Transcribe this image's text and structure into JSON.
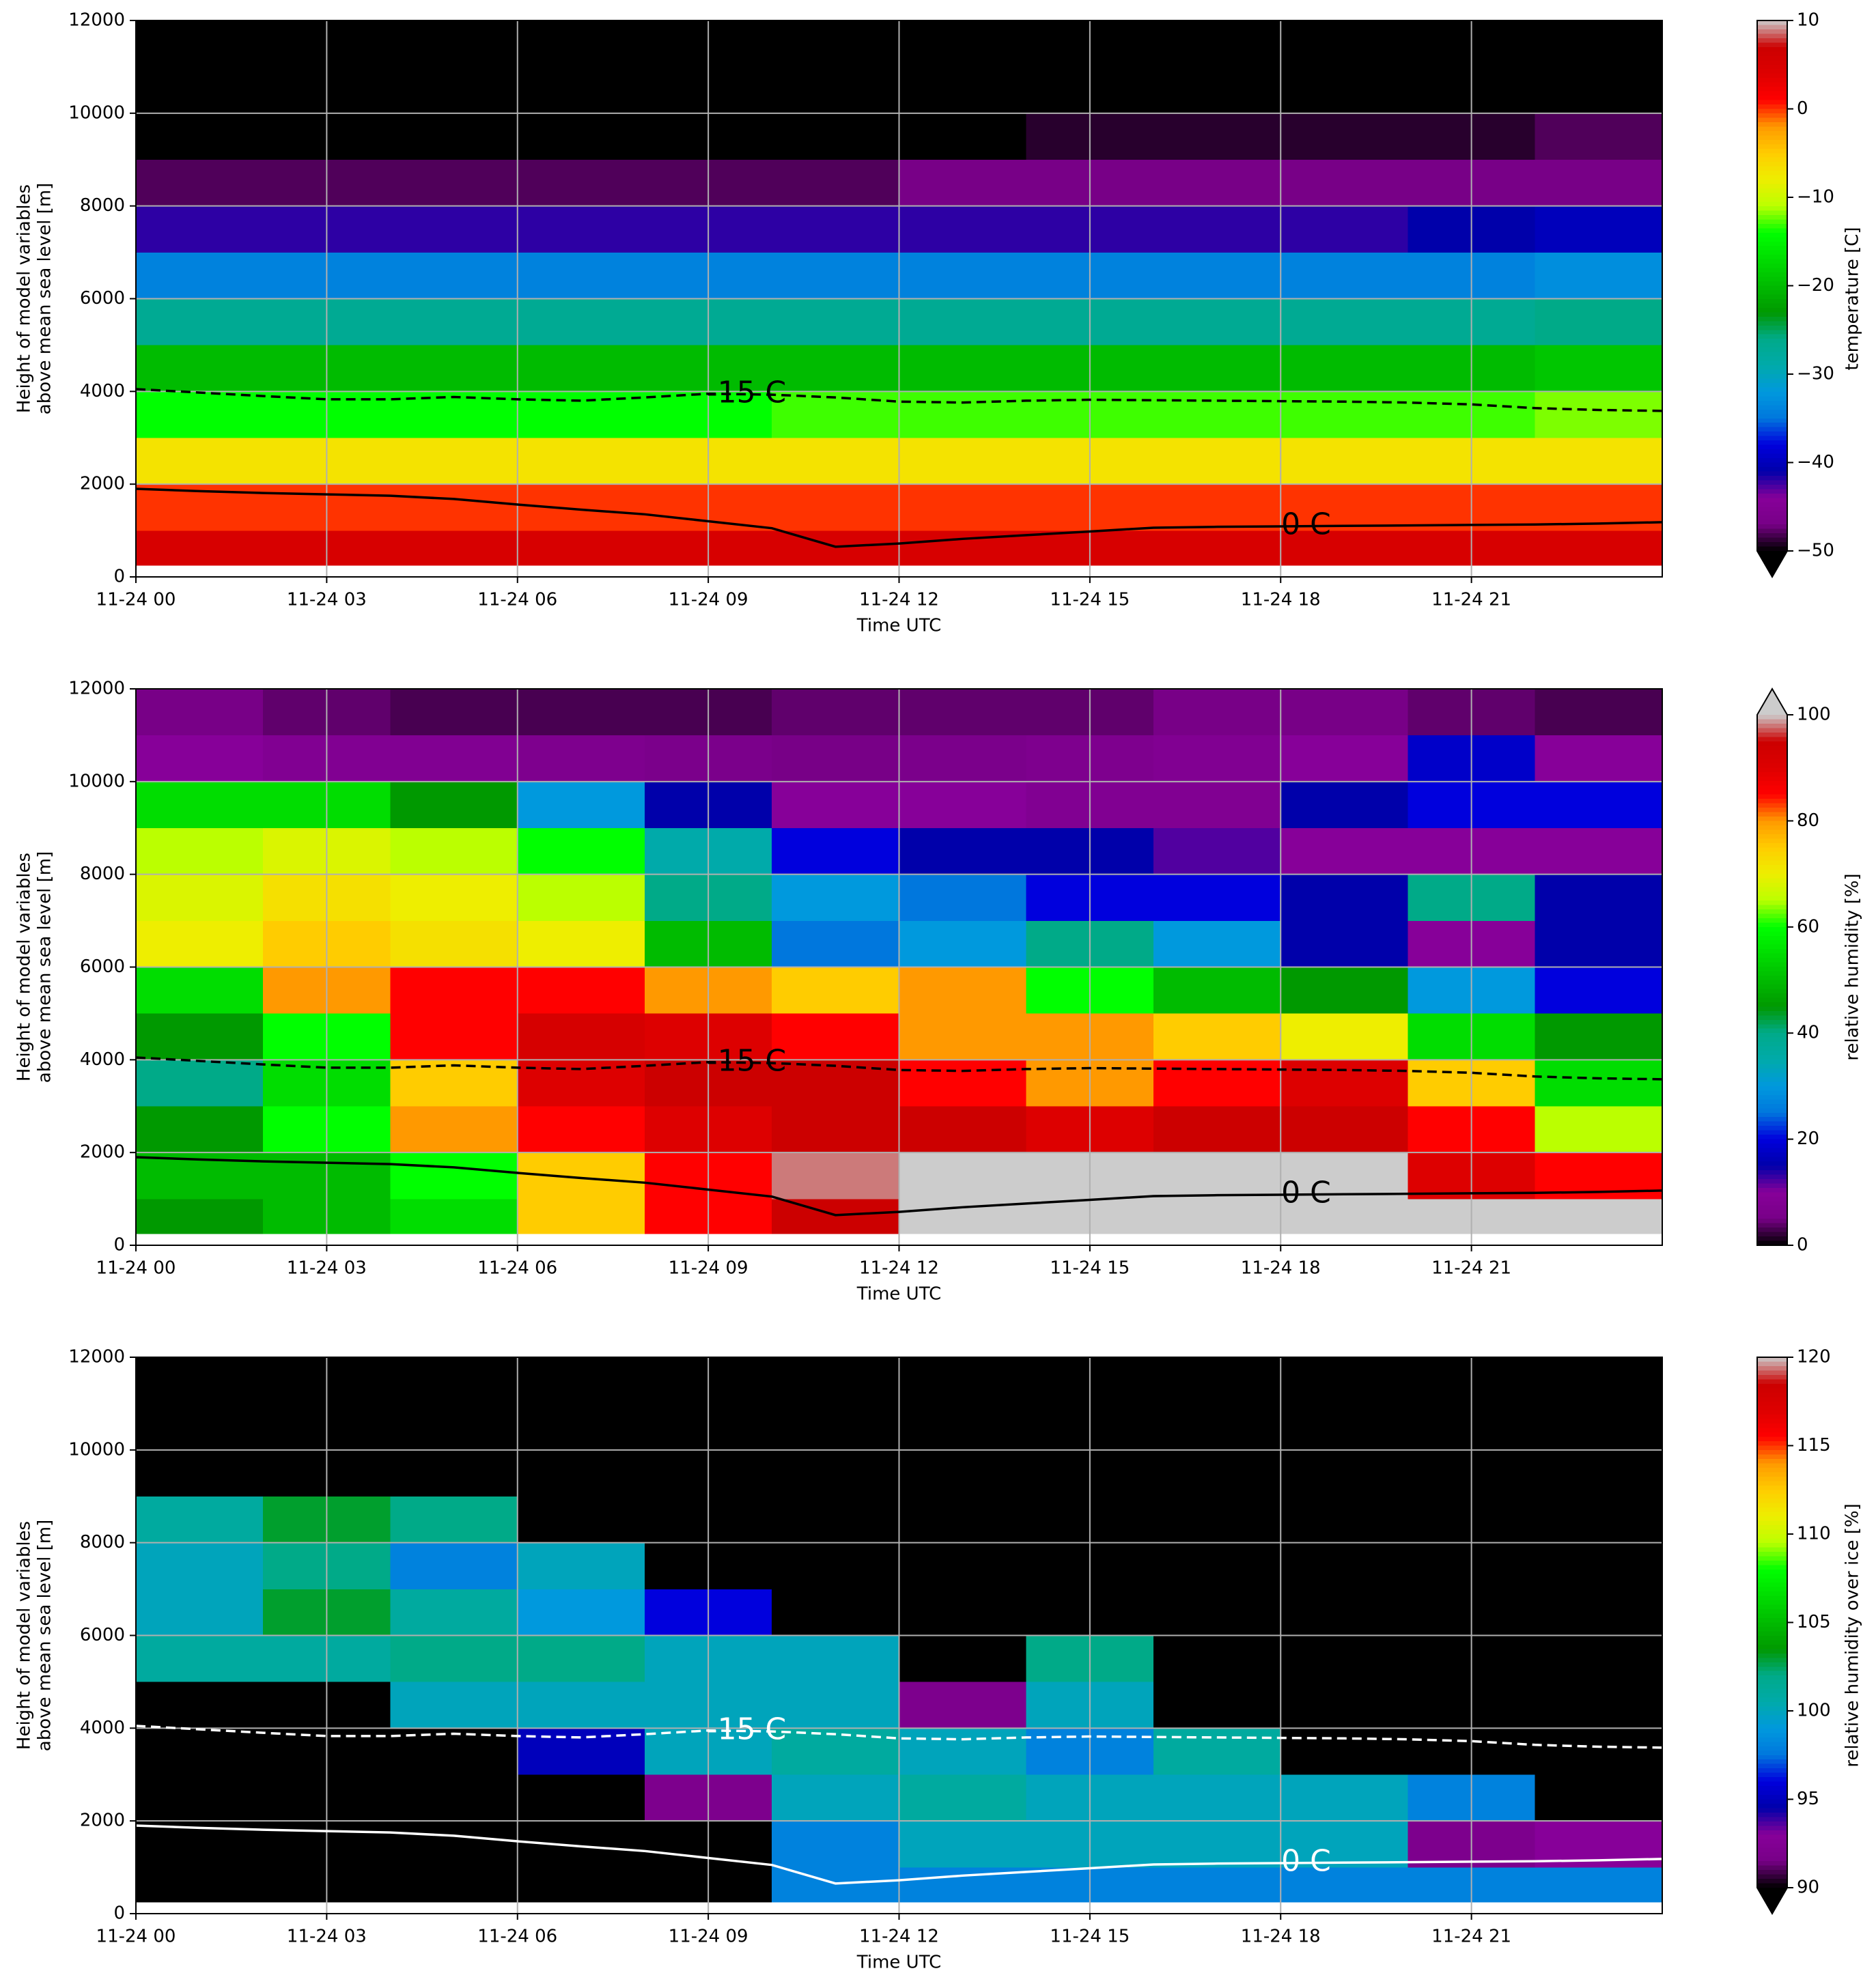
{
  "chart_data": [
    {
      "type": "heatmap",
      "xlabel": "Time UTC",
      "ylabel": [
        "Height of model variables",
        "above mean sea level [m]"
      ],
      "xlim": [
        0,
        24
      ],
      "ylim": [
        0,
        12000
      ],
      "xticks": [
        {
          "value": 0,
          "label": "11-24 00"
        },
        {
          "value": 3,
          "label": "11-24 03"
        },
        {
          "value": 6,
          "label": "11-24 06"
        },
        {
          "value": 9,
          "label": "11-24 09"
        },
        {
          "value": 12,
          "label": "11-24 12"
        },
        {
          "value": 15,
          "label": "11-24 15"
        },
        {
          "value": 18,
          "label": "11-24 18"
        },
        {
          "value": 21,
          "label": "11-24 21"
        }
      ],
      "yticks": [
        0,
        2000,
        4000,
        6000,
        8000,
        10000,
        12000
      ],
      "grid": true,
      "x_edges": [
        0,
        2,
        4,
        6,
        8,
        10,
        12,
        14,
        16,
        18,
        20,
        22,
        24
      ],
      "y_edges": [
        250,
        1000,
        2000,
        3000,
        4000,
        5000,
        6000,
        7000,
        8000,
        9000,
        10000,
        11000,
        12000
      ],
      "z": [
        [
          5,
          5,
          5,
          5,
          5,
          5,
          5,
          5,
          5,
          5,
          5,
          5
        ],
        [
          0,
          0,
          0,
          0,
          0,
          0,
          0,
          0,
          0,
          0,
          0,
          0
        ],
        [
          -7,
          -7,
          -7,
          -7,
          -7,
          -7,
          -7,
          -7,
          -7,
          -7,
          -7,
          -7
        ],
        [
          -14,
          -14,
          -14,
          -14,
          -14,
          -13,
          -13,
          -13,
          -13,
          -13,
          -13,
          -12
        ],
        [
          -20,
          -20,
          -20,
          -20,
          -20,
          -20,
          -20,
          -20,
          -20,
          -20,
          -20,
          -19
        ],
        [
          -27,
          -27,
          -27,
          -27,
          -27,
          -27,
          -27,
          -27,
          -27,
          -27,
          -27,
          -26
        ],
        [
          -34,
          -34,
          -34,
          -34,
          -34,
          -34,
          -34,
          -34,
          -34,
          -34,
          -34,
          -33
        ],
        [
          -42,
          -42,
          -42,
          -42,
          -42,
          -42,
          -42,
          -42,
          -42,
          -42,
          -41,
          -40
        ],
        [
          -48,
          -48,
          -48,
          -48,
          -48,
          -48,
          -47,
          -47,
          -47,
          -47,
          -47,
          -47
        ],
        [
          -55,
          -55,
          -55,
          -55,
          -54,
          -52,
          -50,
          -49,
          -49,
          -49,
          -49,
          -48
        ],
        [
          -56,
          -56,
          -56,
          -56,
          -56,
          -56,
          -55,
          -55,
          -55,
          -55,
          -55,
          -55
        ],
        [
          -57,
          -57,
          -57,
          -57,
          -57,
          -57,
          -57,
          -57,
          -57,
          -57,
          -57,
          -57
        ]
      ],
      "colorbar": {
        "label": "temperature [C]",
        "lim": [
          -50,
          10
        ],
        "extend": "min",
        "ticks": [
          {
            "value": -50,
            "label": "−50"
          },
          {
            "value": -40,
            "label": "−40"
          },
          {
            "value": -30,
            "label": "−30"
          },
          {
            "value": -20,
            "label": "−20"
          },
          {
            "value": -10,
            "label": "−10"
          },
          0,
          10
        ]
      },
      "colormap": [
        "#000000",
        "#780087",
        "#870099",
        "#0000aa",
        "#0000dd",
        "#0077dd",
        "#0099dd",
        "#00aaaa",
        "#00aa88",
        "#009900",
        "#00bb00",
        "#00dd00",
        "#00ff00",
        "#bbff00",
        "#eeee00",
        "#ffcc00",
        "#ff9900",
        "#ff0000",
        "#dd0000",
        "#cc0000",
        "#cccccc"
      ],
      "contours": [
        {
          "name": "-15 C",
          "color": "#000000",
          "dashed": true,
          "x": [
            0,
            2,
            3,
            4,
            5,
            6,
            7,
            8,
            9,
            10,
            11,
            12,
            13,
            14,
            15,
            16,
            17,
            18,
            19,
            20,
            21,
            22,
            23,
            24
          ],
          "y": [
            4050,
            3900,
            3830,
            3830,
            3880,
            3830,
            3800,
            3870,
            3950,
            3930,
            3870,
            3780,
            3760,
            3800,
            3820,
            3810,
            3800,
            3790,
            3780,
            3760,
            3720,
            3640,
            3600,
            3580
          ]
        },
        {
          "name": "0 C",
          "color": "#000000",
          "dashed": false,
          "x": [
            0,
            1,
            2,
            3,
            4,
            5,
            6,
            7,
            8,
            9,
            10,
            11,
            12,
            13,
            14,
            15,
            16,
            17,
            18,
            19,
            20,
            21,
            22,
            23,
            24
          ],
          "y": [
            1900,
            1850,
            1810,
            1780,
            1750,
            1680,
            1560,
            1450,
            1350,
            1200,
            1050,
            650,
            720,
            820,
            900,
            980,
            1060,
            1080,
            1090,
            1100,
            1110,
            1120,
            1130,
            1150,
            1180
          ]
        }
      ]
    },
    {
      "type": "heatmap",
      "xlabel": "Time UTC",
      "ylabel": [
        "Height of model variables",
        "above mean sea level [m]"
      ],
      "xlim": [
        0,
        24
      ],
      "ylim": [
        0,
        12000
      ],
      "xticks": [
        {
          "value": 0,
          "label": "11-24 00"
        },
        {
          "value": 3,
          "label": "11-24 03"
        },
        {
          "value": 6,
          "label": "11-24 06"
        },
        {
          "value": 9,
          "label": "11-24 09"
        },
        {
          "value": 12,
          "label": "11-24 12"
        },
        {
          "value": 15,
          "label": "11-24 15"
        },
        {
          "value": 18,
          "label": "11-24 18"
        },
        {
          "value": 21,
          "label": "11-24 21"
        }
      ],
      "yticks": [
        0,
        2000,
        4000,
        6000,
        8000,
        10000,
        12000
      ],
      "grid": true,
      "x_edges": [
        0,
        2,
        4,
        6,
        8,
        10,
        12,
        14,
        16,
        18,
        20,
        22,
        24
      ],
      "y_edges": [
        250,
        1000,
        2000,
        3000,
        4000,
        5000,
        6000,
        7000,
        8000,
        9000,
        10000,
        11000,
        12000
      ],
      "z": [
        [
          45,
          50,
          55,
          75,
          85,
          95,
          100,
          100,
          100,
          100,
          100,
          100
        ],
        [
          50,
          50,
          60,
          75,
          85,
          98,
          100,
          100,
          100,
          100,
          90,
          85
        ],
        [
          45,
          60,
          80,
          85,
          90,
          95,
          95,
          90,
          95,
          95,
          85,
          65
        ],
        [
          40,
          55,
          75,
          90,
          95,
          95,
          85,
          80,
          85,
          90,
          75,
          55
        ],
        [
          45,
          60,
          85,
          92,
          90,
          85,
          80,
          80,
          75,
          70,
          55,
          45
        ],
        [
          55,
          80,
          85,
          85,
          80,
          75,
          80,
          60,
          50,
          45,
          30,
          20
        ],
        [
          70,
          75,
          72,
          70,
          50,
          25,
          30,
          40,
          30,
          15,
          10,
          15
        ],
        [
          68,
          72,
          70,
          65,
          40,
          30,
          25,
          20,
          20,
          15,
          40,
          15
        ],
        [
          65,
          68,
          65,
          60,
          35,
          20,
          15,
          15,
          12,
          10,
          10,
          10
        ],
        [
          55,
          55,
          45,
          30,
          15,
          10,
          10,
          8,
          8,
          15,
          20,
          20
        ],
        [
          10,
          8,
          8,
          7,
          6,
          5,
          6,
          7,
          8,
          10,
          18,
          10
        ],
        [
          5,
          4,
          3,
          3,
          3,
          4,
          4,
          4,
          5,
          5,
          4,
          3
        ]
      ],
      "colorbar": {
        "label": "relative humidity [%]",
        "lim": [
          0,
          100
        ],
        "extend": "max",
        "ticks": [
          0,
          20,
          40,
          60,
          80,
          100
        ]
      },
      "colormap": [
        "#000000",
        "#780087",
        "#870099",
        "#0000aa",
        "#0000dd",
        "#0077dd",
        "#0099dd",
        "#00aaaa",
        "#00aa88",
        "#009900",
        "#00bb00",
        "#00dd00",
        "#00ff00",
        "#bbff00",
        "#eeee00",
        "#ffcc00",
        "#ff9900",
        "#ff0000",
        "#dd0000",
        "#cc0000",
        "#cccccc"
      ],
      "contours": [
        {
          "name": "-15 C",
          "color": "#000000",
          "dashed": true,
          "x": [
            0,
            2,
            3,
            4,
            5,
            6,
            7,
            8,
            9,
            10,
            11,
            12,
            13,
            14,
            15,
            16,
            17,
            18,
            19,
            20,
            21,
            22,
            23,
            24
          ],
          "y": [
            4050,
            3900,
            3830,
            3830,
            3880,
            3830,
            3800,
            3870,
            3950,
            3930,
            3870,
            3780,
            3760,
            3800,
            3820,
            3810,
            3800,
            3790,
            3780,
            3760,
            3720,
            3640,
            3600,
            3580
          ]
        },
        {
          "name": "0 C",
          "color": "#000000",
          "dashed": false,
          "x": [
            0,
            1,
            2,
            3,
            4,
            5,
            6,
            7,
            8,
            9,
            10,
            11,
            12,
            13,
            14,
            15,
            16,
            17,
            18,
            19,
            20,
            21,
            22,
            23,
            24
          ],
          "y": [
            1900,
            1850,
            1810,
            1780,
            1750,
            1680,
            1560,
            1450,
            1350,
            1200,
            1050,
            650,
            720,
            820,
            900,
            980,
            1060,
            1080,
            1090,
            1100,
            1110,
            1120,
            1130,
            1150,
            1180
          ]
        }
      ]
    },
    {
      "type": "heatmap",
      "xlabel": "Time UTC",
      "ylabel": [
        "Height of model variables",
        "above mean sea level [m]"
      ],
      "xlim": [
        0,
        24
      ],
      "ylim": [
        0,
        12000
      ],
      "xticks": [
        {
          "value": 0,
          "label": "11-24 00"
        },
        {
          "value": 3,
          "label": "11-24 03"
        },
        {
          "value": 6,
          "label": "11-24 06"
        },
        {
          "value": 9,
          "label": "11-24 09"
        },
        {
          "value": 12,
          "label": "11-24 12"
        },
        {
          "value": 15,
          "label": "11-24 15"
        },
        {
          "value": 18,
          "label": "11-24 18"
        },
        {
          "value": 21,
          "label": "11-24 21"
        }
      ],
      "yticks": [
        0,
        2000,
        4000,
        6000,
        8000,
        10000,
        12000
      ],
      "grid": true,
      "x_edges": [
        0,
        2,
        4,
        6,
        8,
        10,
        12,
        14,
        16,
        18,
        20,
        22,
        24
      ],
      "y_edges": [
        250,
        1000,
        2000,
        3000,
        4000,
        5000,
        6000,
        7000,
        8000,
        9000,
        10000,
        11000,
        12000
      ],
      "z": [
        [
          85,
          85,
          85,
          85,
          85,
          98,
          98,
          98,
          98,
          98,
          98,
          98
        ],
        [
          85,
          85,
          85,
          85,
          85,
          98,
          100,
          100,
          100,
          100,
          92,
          93
        ],
        [
          85,
          85,
          85,
          85,
          92,
          100,
          101,
          100,
          100,
          100,
          98,
          85
        ],
        [
          85,
          85,
          85,
          95,
          100,
          101,
          100,
          98,
          101,
          85,
          85,
          85
        ],
        [
          85,
          85,
          100,
          100,
          100,
          100,
          92,
          100,
          85,
          85,
          85,
          85
        ],
        [
          101,
          101,
          102,
          102,
          100,
          100,
          85,
          102,
          85,
          85,
          85,
          85
        ],
        [
          100,
          103,
          101,
          99,
          96,
          85,
          85,
          85,
          85,
          85,
          85,
          85
        ],
        [
          100,
          102,
          98,
          100,
          85,
          85,
          85,
          85,
          85,
          85,
          85,
          85
        ],
        [
          101,
          103,
          102,
          85,
          85,
          85,
          85,
          85,
          85,
          85,
          85,
          85
        ],
        [
          85,
          85,
          85,
          85,
          85,
          85,
          85,
          85,
          85,
          85,
          85,
          85
        ],
        [
          85,
          85,
          85,
          85,
          85,
          85,
          85,
          85,
          85,
          85,
          85,
          85
        ],
        [
          85,
          85,
          85,
          85,
          85,
          85,
          85,
          85,
          85,
          85,
          85,
          85
        ]
      ],
      "colorbar": {
        "label": "relative humidity over ice [%]",
        "lim": [
          90,
          120
        ],
        "extend": "min",
        "ticks": [
          90,
          95,
          100,
          105,
          110,
          115,
          120
        ]
      },
      "colormap": [
        "#000000",
        "#780087",
        "#870099",
        "#0000aa",
        "#0000dd",
        "#0077dd",
        "#0099dd",
        "#00aaaa",
        "#00aa88",
        "#009900",
        "#00bb00",
        "#00dd00",
        "#00ff00",
        "#bbff00",
        "#eeee00",
        "#ffcc00",
        "#ff9900",
        "#ff0000",
        "#dd0000",
        "#cc0000",
        "#cccccc"
      ],
      "contours": [
        {
          "name": "-15 C",
          "color": "#ffffff",
          "dashed": true,
          "x": [
            0,
            2,
            3,
            4,
            5,
            6,
            7,
            8,
            9,
            10,
            11,
            12,
            13,
            14,
            15,
            16,
            17,
            18,
            19,
            20,
            21,
            22,
            23,
            24
          ],
          "y": [
            4050,
            3900,
            3830,
            3830,
            3880,
            3830,
            3800,
            3870,
            3950,
            3930,
            3870,
            3780,
            3760,
            3800,
            3820,
            3810,
            3800,
            3790,
            3780,
            3760,
            3720,
            3640,
            3600,
            3580
          ]
        },
        {
          "name": "0 C",
          "color": "#ffffff",
          "dashed": false,
          "x": [
            0,
            1,
            2,
            3,
            4,
            5,
            6,
            7,
            8,
            9,
            10,
            11,
            12,
            13,
            14,
            15,
            16,
            17,
            18,
            19,
            20,
            21,
            22,
            23,
            24
          ],
          "y": [
            1900,
            1850,
            1810,
            1780,
            1750,
            1680,
            1560,
            1450,
            1350,
            1200,
            1050,
            650,
            720,
            820,
            900,
            980,
            1060,
            1080,
            1090,
            1100,
            1110,
            1120,
            1130,
            1150,
            1180
          ]
        }
      ]
    }
  ]
}
